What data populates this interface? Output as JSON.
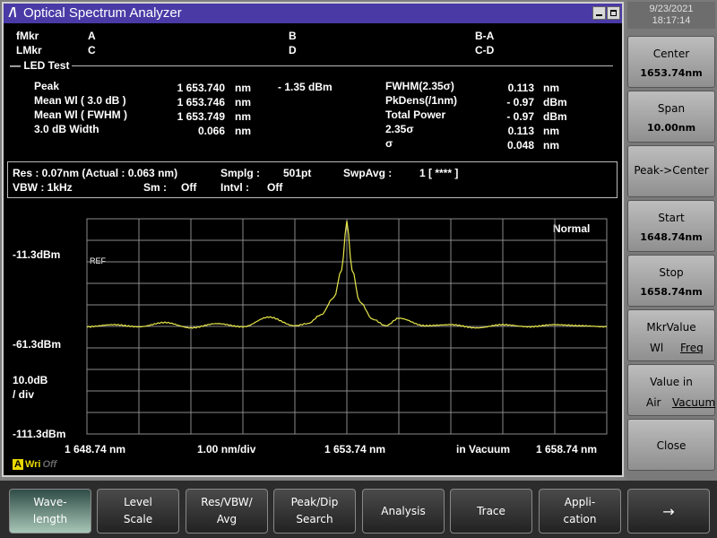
{
  "datetime": {
    "date": "9/23/2021",
    "time": "18:17:14"
  },
  "window": {
    "title": "Optical Spectrum Analyzer"
  },
  "markers": {
    "fmkr": "fMkr",
    "lmkr": "LMkr",
    "a": "A",
    "b": "B",
    "ba": "B-A",
    "c": "C",
    "d": "D",
    "cd": "C-D"
  },
  "led_test": {
    "header": "LED Test",
    "rows": [
      {
        "label": "Peak",
        "value": "1 653.740",
        "unit": "nm"
      },
      {
        "label": "Mean Wl  (   3.0  dB  )",
        "value": "1 653.746",
        "unit": "nm"
      },
      {
        "label": "Mean Wl  ( FWHM )",
        "value": "1 653.749",
        "unit": "nm"
      },
      {
        "label": "3.0      dB Width",
        "value": "0.066",
        "unit": "nm"
      }
    ],
    "peak_level": "-  1.35 dBm",
    "right_rows": [
      {
        "label": "FWHM(2.35σ)",
        "value": "0.113",
        "unit": "nm"
      },
      {
        "label": "PkDens(/1nm)",
        "value": "-  0.97",
        "unit": "dBm"
      },
      {
        "label": "Total Power",
        "value": "-  0.97",
        "unit": "dBm"
      },
      {
        "label": "2.35σ",
        "value": "0.113",
        "unit": "nm"
      },
      {
        "label": "σ",
        "value": "0.048",
        "unit": "nm"
      }
    ]
  },
  "params": {
    "res": "Res : 0.07nm (Actual :  0.063 nm)",
    "smplg_label": "Smplg :",
    "smplg_value": "501pt",
    "swpavg_label": "SwpAvg :",
    "swpavg_value": "1 [     ****  ]",
    "vbw": "VBW :   1kHz",
    "sm_label": "Sm :",
    "sm_value": "Off",
    "intvl_label": "Intvl :",
    "intvl_value": "Off"
  },
  "plot": {
    "ref_level": "-11.3dBm",
    "mid_level": "-61.3dBm",
    "bottom_level": "-111.3dBm",
    "scale": "10.0dB",
    "scale_unit": "/ div",
    "ref_tag": "REF",
    "mode": "Normal",
    "x_start": "1 648.74 nm",
    "x_div": "1.00 nm/div",
    "x_center": "1 653.74 nm",
    "x_medium": "in Vacuum",
    "x_stop": "1 658.74 nm",
    "trace_color": "#e8e84a",
    "grid_color": "#8a8a8a"
  },
  "wri": {
    "a": "A",
    "wri": "Wri",
    "off": "Off"
  },
  "chart_data": {
    "type": "line",
    "x_unit": "nm",
    "y_unit": "dBm",
    "xlim": [
      1648.74,
      1658.74
    ],
    "ylim": [
      -111.3,
      -11.3
    ],
    "x": [
      1648.74,
      1649.24,
      1649.74,
      1650.24,
      1650.74,
      1651.24,
      1651.74,
      1652.24,
      1652.74,
      1652.99,
      1653.24,
      1653.49,
      1653.64,
      1653.74,
      1653.84,
      1653.99,
      1654.24,
      1654.49,
      1654.74,
      1655.24,
      1655.74,
      1656.24,
      1656.74,
      1657.24,
      1657.74,
      1658.24,
      1658.74
    ],
    "y": [
      -61.5,
      -60.5,
      -61.5,
      -59.5,
      -62.0,
      -60.0,
      -61.5,
      -57.0,
      -61.0,
      -60.0,
      -56.0,
      -48.0,
      -35.0,
      -12.5,
      -35.0,
      -50.0,
      -58.0,
      -61.0,
      -57.5,
      -61.0,
      -60.5,
      -62.0,
      -60.5,
      -61.5,
      -60.5,
      -61.0,
      -61.5
    ]
  },
  "softkeys": [
    {
      "title": "Center",
      "value": "1653.74nm"
    },
    {
      "title": "Span",
      "value": "10.00nm"
    },
    {
      "title": "Peak->Center"
    },
    {
      "title": "Start",
      "value": "1648.74nm"
    },
    {
      "title": "Stop",
      "value": "1658.74nm"
    },
    {
      "title": "MkrValue",
      "opt1": "Wl",
      "opt2": "Freq"
    },
    {
      "title": "Value in",
      "opt1": "Air",
      "opt2": "Vacuum"
    },
    {
      "title": "Close"
    }
  ],
  "bottom_keys": [
    {
      "label": "Wave-\nlength"
    },
    {
      "label": "Level\nScale"
    },
    {
      "label": "Res/VBW/\nAvg"
    },
    {
      "label": "Peak/Dip\nSearch"
    },
    {
      "label": "Analysis"
    },
    {
      "label": "Trace"
    },
    {
      "label": "Appli-\ncation"
    },
    {
      "label": "→"
    }
  ]
}
